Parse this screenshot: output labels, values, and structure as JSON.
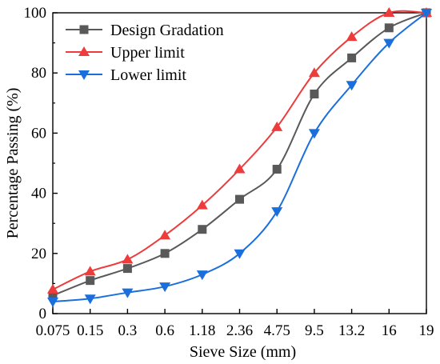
{
  "chart_data": {
    "type": "line",
    "categories": [
      "0.075",
      "0.15",
      "0.3",
      "0.6",
      "1.18",
      "2.36",
      "4.75",
      "9.5",
      "13.2",
      "16",
      "19"
    ],
    "xlabel": "Sieve Size (mm)",
    "ylabel": "Percentage Passing (%)",
    "ylim": [
      0,
      100
    ],
    "yticks": [
      0,
      20,
      40,
      60,
      80,
      100
    ],
    "grid": false,
    "legend_position": "top-left",
    "series": [
      {
        "name": "Design Gradation",
        "color": "#595959",
        "marker": "square",
        "values": [
          6,
          11,
          15,
          20,
          28,
          38,
          48,
          73,
          85,
          95,
          100
        ]
      },
      {
        "name": "Upper limit",
        "color": "#ee3b3b",
        "marker": "triangle-up",
        "values": [
          8,
          14,
          18,
          26,
          36,
          48,
          62,
          80,
          92,
          100,
          100
        ]
      },
      {
        "name": "Lower limit",
        "color": "#1a6fdc",
        "marker": "triangle-down",
        "values": [
          4,
          5,
          7,
          9,
          13,
          20,
          34,
          60,
          76,
          90,
          100
        ]
      }
    ]
  }
}
